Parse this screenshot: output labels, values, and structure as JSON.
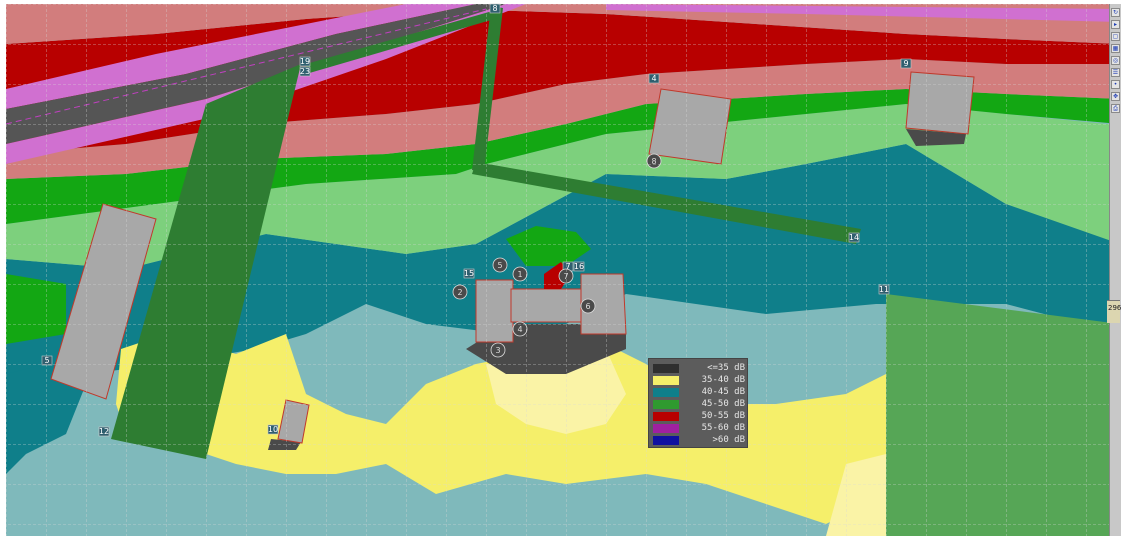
{
  "map": {
    "legend": {
      "entries": [
        {
          "label": "<=35 dB",
          "color": "#2f2f2f"
        },
        {
          "label": "35-40 dB",
          "color": "#f5ef6a"
        },
        {
          "label": "40-45 dB",
          "color": "#0f7f8a"
        },
        {
          "label": "45-50 dB",
          "color": "#2f9a2f"
        },
        {
          "label": "50-55 dB",
          "color": "#b80000"
        },
        {
          "label": "55-60 dB",
          "color": "#a020a0"
        },
        {
          "label": ">60 dB",
          "color": "#1010a0"
        }
      ]
    },
    "zone_colors": {
      "road_lane": "#d070d0",
      "road_surface": "#555555",
      "band_red": "#b80000",
      "band_salmon": "#d27d7d",
      "band_green": "#13a713",
      "band_light_green": "#7dd07d",
      "band_teal": "#0f7f8a",
      "band_light_teal": "#7fb9bb",
      "band_yellow": "#f5ef6a",
      "band_pale_yellow": "#faf3a6",
      "shadow": "#4a4a4a",
      "building": "#a8a8a8",
      "barrier": "#2e7d32",
      "ground_area": "#56a656"
    },
    "building_labels": [
      "19",
      "23",
      "8",
      "4",
      "9",
      "15",
      "12",
      "5",
      "10",
      "14",
      "11",
      "7",
      "16"
    ],
    "point_labels": [
      "1",
      "2",
      "3",
      "4",
      "5",
      "6",
      "7",
      "8"
    ],
    "scale_text": "296"
  }
}
